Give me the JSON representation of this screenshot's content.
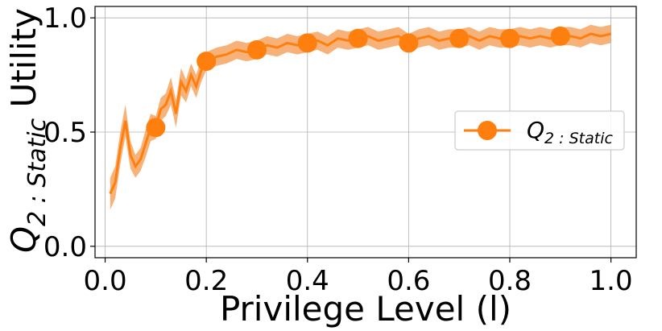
{
  "chart_data": {
    "type": "line",
    "title": "",
    "xlabel": "Privilege Level (l)",
    "ylabel_main": "Q",
    "ylabel_sub": "2 : Static",
    "ylabel_suffix": " Utility",
    "xlim": [
      -0.02,
      1.05
    ],
    "ylim": [
      -0.05,
      1.05
    ],
    "xticks": [
      0.0,
      0.2,
      0.4,
      0.6,
      0.8,
      1.0
    ],
    "xtick_labels": [
      "0.0",
      "0.2",
      "0.4",
      "0.6",
      "0.8",
      "1.0"
    ],
    "yticks": [
      0.0,
      0.5,
      1.0
    ],
    "ytick_labels": [
      "0.0",
      "0.5",
      "1.0"
    ],
    "grid": true,
    "legend_position": "center-right",
    "series": [
      {
        "name_main": "Q",
        "name_sub": "2 : Static",
        "color": "#ff7f0e",
        "band_color": "#f4a460",
        "x": [
          0.01,
          0.02,
          0.03,
          0.04,
          0.05,
          0.06,
          0.07,
          0.08,
          0.09,
          0.1,
          0.11,
          0.12,
          0.13,
          0.14,
          0.15,
          0.16,
          0.17,
          0.18,
          0.19,
          0.2,
          0.22,
          0.24,
          0.26,
          0.28,
          0.3,
          0.32,
          0.34,
          0.36,
          0.38,
          0.4,
          0.42,
          0.44,
          0.46,
          0.48,
          0.5,
          0.52,
          0.54,
          0.56,
          0.58,
          0.6,
          0.62,
          0.64,
          0.66,
          0.68,
          0.7,
          0.72,
          0.74,
          0.76,
          0.78,
          0.8,
          0.82,
          0.84,
          0.86,
          0.88,
          0.9,
          0.92,
          0.94,
          0.96,
          0.98,
          1.0
        ],
        "y": [
          0.23,
          0.28,
          0.43,
          0.55,
          0.4,
          0.35,
          0.38,
          0.45,
          0.52,
          0.52,
          0.6,
          0.62,
          0.68,
          0.58,
          0.72,
          0.68,
          0.75,
          0.7,
          0.77,
          0.81,
          0.83,
          0.84,
          0.86,
          0.85,
          0.86,
          0.88,
          0.87,
          0.89,
          0.88,
          0.89,
          0.9,
          0.88,
          0.91,
          0.9,
          0.91,
          0.92,
          0.9,
          0.91,
          0.92,
          0.89,
          0.91,
          0.92,
          0.9,
          0.91,
          0.91,
          0.92,
          0.9,
          0.92,
          0.91,
          0.91,
          0.92,
          0.91,
          0.92,
          0.91,
          0.92,
          0.92,
          0.91,
          0.93,
          0.92,
          0.93
        ],
        "band": [
          0.07,
          0.07,
          0.07,
          0.07,
          0.06,
          0.05,
          0.05,
          0.06,
          0.06,
          0.05,
          0.05,
          0.05,
          0.06,
          0.06,
          0.06,
          0.05,
          0.05,
          0.05,
          0.05,
          0.04,
          0.04,
          0.04,
          0.04,
          0.04,
          0.04,
          0.04,
          0.04,
          0.04,
          0.04,
          0.04,
          0.04,
          0.04,
          0.04,
          0.04,
          0.04,
          0.04,
          0.04,
          0.04,
          0.04,
          0.04,
          0.04,
          0.04,
          0.04,
          0.04,
          0.04,
          0.04,
          0.04,
          0.04,
          0.04,
          0.04,
          0.04,
          0.04,
          0.04,
          0.04,
          0.04,
          0.04,
          0.04,
          0.04,
          0.04,
          0.04
        ],
        "marker_x": [
          0.1,
          0.2,
          0.3,
          0.4,
          0.5,
          0.6,
          0.7,
          0.8,
          0.9
        ],
        "marker_y": [
          0.52,
          0.81,
          0.86,
          0.89,
          0.91,
          0.89,
          0.91,
          0.91,
          0.92
        ]
      }
    ]
  }
}
